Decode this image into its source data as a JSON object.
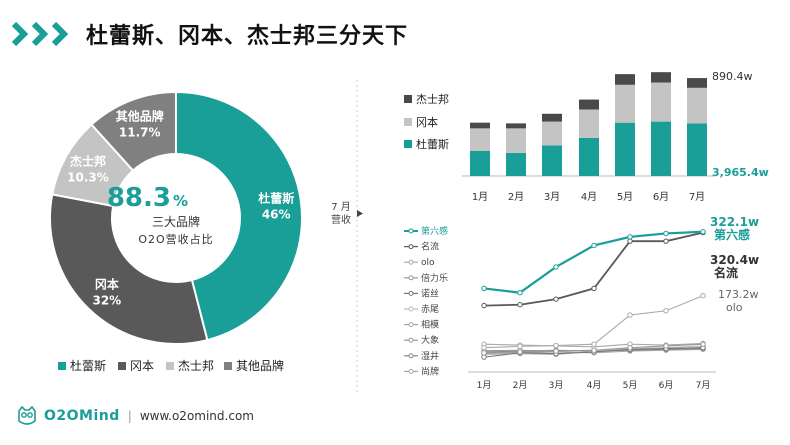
{
  "header": {
    "title": "杜蕾斯、冈本、杰士邦三分天下",
    "chevron_color": "#1a9e98"
  },
  "donut": {
    "center_value": "88.3",
    "center_unit": "%",
    "center_line1": "三大品牌",
    "center_line2": "O2O营收占比",
    "slices": [
      {
        "name": "杜蕾斯",
        "value": 46,
        "label": "46%",
        "color": "#1a9e98"
      },
      {
        "name": "冈本",
        "value": 32,
        "label": "32%",
        "color": "#595959"
      },
      {
        "name": "杰士邦",
        "value": 10.3,
        "label": "10.3%",
        "color": "#c4c4c4"
      },
      {
        "name": "其他品牌",
        "value": 11.7,
        "label": "11.7%",
        "color": "#808080"
      }
    ]
  },
  "legend": [
    "杜蕾斯",
    "冈本",
    "杰士邦",
    "其他品牌"
  ],
  "divider_label": {
    "line1": "7 月",
    "line2": "营收"
  },
  "chart_data": [
    {
      "type": "pie",
      "categories": [
        "杜蕾斯",
        "冈本",
        "杰士邦",
        "其他品牌"
      ],
      "values": [
        46,
        32,
        10.3,
        11.7
      ],
      "legend": "bottom"
    },
    {
      "type": "bar",
      "stacked": true,
      "categories": [
        "1月",
        "2月",
        "3月",
        "4月",
        "5月",
        "6月",
        "7月"
      ],
      "series": [
        {
          "name": "杜蕾斯",
          "values": [
            1.42,
            1.3,
            1.72,
            2.14,
            3.0,
            3.06,
            2.96
          ],
          "color": "#1a9e98"
        },
        {
          "name": "冈本",
          "values": [
            1.26,
            1.38,
            1.34,
            1.6,
            2.13,
            2.2,
            2.0
          ],
          "color": "#c4c4c4"
        },
        {
          "name": "杰士邦",
          "values": [
            0.32,
            0.28,
            0.44,
            0.56,
            0.6,
            0.58,
            0.55
          ],
          "color": "#4a4a4a"
        }
      ],
      "annotations": [
        "890.4w",
        "3,965.4w"
      ],
      "legend": "left",
      "ylim": [
        0,
        6.3
      ]
    },
    {
      "type": "line",
      "categories": [
        "1月",
        "2月",
        "3月",
        "4月",
        "5月",
        "6月",
        "7月"
      ],
      "series": [
        {
          "name": "第六感",
          "values": [
            190,
            180,
            240,
            290,
            310,
            318,
            322
          ],
          "color": "#1a9e98"
        },
        {
          "name": "名流",
          "values": [
            150,
            152,
            165,
            190,
            300,
            300,
            320
          ],
          "color": "#595959"
        },
        {
          "name": "olo",
          "values": [
            52,
            55,
            57,
            60,
            128,
            138,
            173
          ],
          "color": "#aaaaaa"
        },
        {
          "name": "倍力乐",
          "values": [
            40,
            42,
            44,
            46,
            52,
            56,
            60
          ],
          "color": "#999999"
        },
        {
          "name": "诺丝",
          "values": [
            30,
            40,
            38,
            42,
            48,
            50,
            52
          ],
          "color": "#777777"
        },
        {
          "name": "赤尾",
          "values": [
            36,
            38,
            36,
            44,
            50,
            52,
            56
          ],
          "color": "#bbbbbb"
        },
        {
          "name": "相模",
          "values": [
            60,
            58,
            56,
            54,
            60,
            58,
            62
          ],
          "color": "#aaaaaa"
        },
        {
          "name": "大象",
          "values": [
            45,
            46,
            44,
            46,
            48,
            50,
            52
          ],
          "color": "#999999"
        },
        {
          "name": "湿井",
          "values": [
            42,
            44,
            46,
            44,
            46,
            48,
            50
          ],
          "color": "#888888"
        },
        {
          "name": "尚牌",
          "values": [
            38,
            40,
            42,
            40,
            44,
            46,
            48
          ],
          "color": "#aaaaaa"
        }
      ],
      "annotations": [
        {
          "value": "322.1w",
          "label": "第六感"
        },
        {
          "value": "320.4w",
          "label": "名流"
        },
        {
          "value": "173.2w",
          "label": "olo"
        }
      ],
      "legend": "left",
      "ylim": [
        0,
        340
      ]
    }
  ],
  "footer": {
    "brand": "O2OMind",
    "separator": "|",
    "website": "www.o2omind.com"
  }
}
